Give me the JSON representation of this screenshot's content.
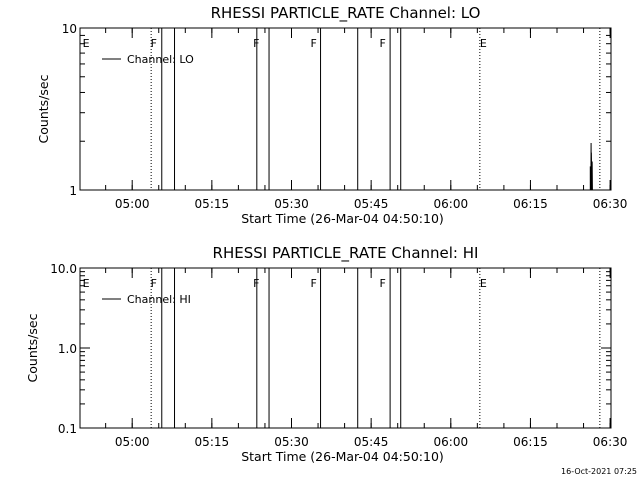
{
  "chart_data": [
    {
      "type": "line",
      "title": "RHESSI PARTICLE_RATE Channel: LO",
      "xlabel": "Start Time (26-Mar-04 04:50:10)",
      "ylabel": "Counts/sec",
      "x_unit": "minutes after 04:50:10",
      "xlim": [
        0,
        100
      ],
      "ylim": [
        1,
        10
      ],
      "yscale": "log",
      "xticks": [
        {
          "v": 9.83,
          "label": "05:00"
        },
        {
          "v": 24.83,
          "label": "05:15"
        },
        {
          "v": 39.83,
          "label": "05:30"
        },
        {
          "v": 54.83,
          "label": "05:45"
        },
        {
          "v": 69.83,
          "label": "06:00"
        },
        {
          "v": 84.83,
          "label": "06:15"
        },
        {
          "v": 99.83,
          "label": "06:30"
        }
      ],
      "yticks": [
        {
          "v": 1,
          "label": "1"
        },
        {
          "v": 10,
          "label": "10"
        }
      ],
      "legend": {
        "label": "Channel: LO",
        "placement": "top-left"
      },
      "series": [
        {
          "name": "Channel: LO",
          "x": [
            96.1,
            96.1,
            96.2,
            96.25,
            96.3,
            96.3,
            96.4,
            96.45,
            96.5,
            96.5
          ],
          "y": [
            1,
            1.4,
            1.0,
            1.95,
            1.0,
            1.7,
            1.0,
            1.5,
            1.0,
            1.0
          ]
        }
      ],
      "flags": [
        {
          "x": 0.5,
          "label": "E"
        },
        {
          "x": 13.3,
          "label": "F"
        },
        {
          "x": 32.6,
          "label": "F"
        },
        {
          "x": 43.4,
          "label": "F"
        },
        {
          "x": 56.4,
          "label": "F"
        },
        {
          "x": 75.3,
          "label": "E"
        }
      ],
      "dotted_lines": [
        13.4,
        75.3,
        97.9
      ],
      "solid_lines": [
        15.4,
        17.8,
        33.3,
        35.6,
        45.3,
        52.3,
        58.4,
        60.4
      ]
    },
    {
      "type": "line",
      "title": "RHESSI PARTICLE_RATE Channel: HI",
      "xlabel": "Start Time (26-Mar-04 04:50:10)",
      "ylabel": "Counts/sec",
      "x_unit": "minutes after 04:50:10",
      "xlim": [
        0,
        100
      ],
      "ylim": [
        0.1,
        10
      ],
      "yscale": "log",
      "xticks": [
        {
          "v": 9.83,
          "label": "05:00"
        },
        {
          "v": 24.83,
          "label": "05:15"
        },
        {
          "v": 39.83,
          "label": "05:30"
        },
        {
          "v": 54.83,
          "label": "05:45"
        },
        {
          "v": 69.83,
          "label": "06:00"
        },
        {
          "v": 84.83,
          "label": "06:15"
        },
        {
          "v": 99.83,
          "label": "06:30"
        }
      ],
      "yticks": [
        {
          "v": 0.1,
          "label": "0.1"
        },
        {
          "v": 1,
          "label": "1.0"
        },
        {
          "v": 10,
          "label": "10.0"
        }
      ],
      "legend": {
        "label": "Channel: HI",
        "placement": "top-left"
      },
      "series": [
        {
          "name": "Channel: HI",
          "x": [],
          "y": []
        }
      ],
      "flags": [
        {
          "x": 0.5,
          "label": "E"
        },
        {
          "x": 13.3,
          "label": "F"
        },
        {
          "x": 32.6,
          "label": "F"
        },
        {
          "x": 43.4,
          "label": "F"
        },
        {
          "x": 56.4,
          "label": "F"
        },
        {
          "x": 75.3,
          "label": "E"
        }
      ],
      "dotted_lines": [
        13.4,
        75.3,
        97.9
      ],
      "solid_lines": [
        15.4,
        17.8,
        33.3,
        35.6,
        45.3,
        52.3,
        58.4,
        60.4
      ]
    }
  ],
  "footer": {
    "timestamp": "16-Oct-2021 07:25"
  }
}
